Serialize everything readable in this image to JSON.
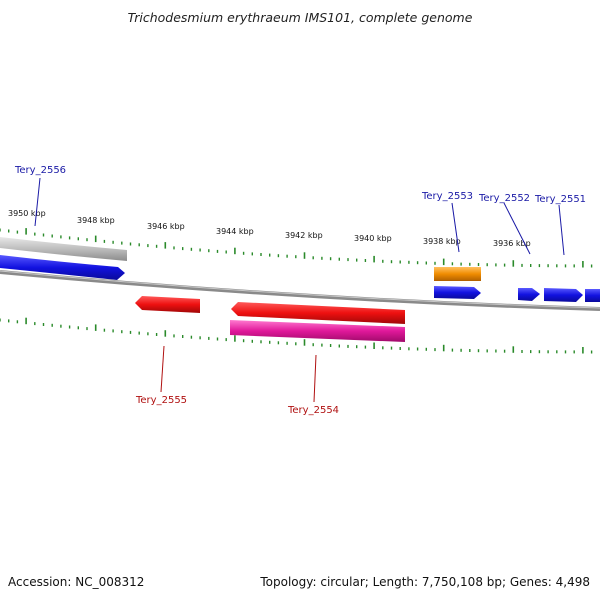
{
  "header": {
    "title": "Trichodesmium erythraeum IMS101, complete genome"
  },
  "ruler": {
    "ticks": [
      "3950 kbp",
      "3948 kbp",
      "3946 kbp",
      "3944 kbp",
      "3942 kbp",
      "3940 kbp",
      "3938 kbp",
      "3936 kbp"
    ]
  },
  "genes": {
    "labels_forward": [
      "Tery_2556",
      "Tery_2553",
      "Tery_2552",
      "Tery_2551"
    ],
    "labels_reverse": [
      "Tery_2555",
      "Tery_2554"
    ]
  },
  "footer": {
    "accession": "Accession: NC_008312",
    "summary": "Topology: circular; Length: 7,750,108 bp; Genes: 4,498"
  },
  "colors": {
    "forward_gene": "#1a1ae6",
    "reverse_gene": "#e61010",
    "rna_orange": "#f08c00",
    "rna_magenta": "#e0189a",
    "backbone": "#8a8a8a",
    "tick_green": "#2a8a2a"
  }
}
